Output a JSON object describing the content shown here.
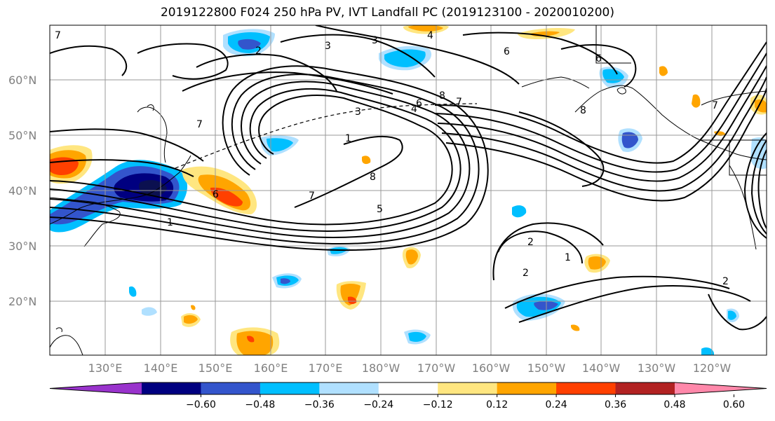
{
  "title": "2019122800 F024 250 hPa PV, IVT Landfall PC (2019123100 - 2020010200)",
  "latitude_labels": [
    "60°N",
    "50°N",
    "40°N",
    "30°N",
    "20°N"
  ],
  "longitude_labels": [
    "130°E",
    "140°E",
    "150°E",
    "160°E",
    "170°E",
    "180°W",
    "170°W",
    "160°W",
    "150°W",
    "140°W",
    "130°W",
    "120°W"
  ],
  "contour_labels": [
    "3",
    "3",
    "2",
    "4",
    "6",
    "6",
    "8",
    "7",
    "3",
    "6",
    "4",
    "8",
    "7",
    "1",
    "8",
    "7",
    "6",
    "5",
    "1",
    "7",
    "2",
    "1",
    "2",
    "2",
    "7"
  ],
  "colorbar": {
    "ticks": [
      "−0.60",
      "−0.48",
      "−0.36",
      "−0.24",
      "−0.12",
      "0.12",
      "0.24",
      "0.36",
      "0.48",
      "0.60"
    ],
    "colors": [
      "#9933cc",
      "#000080",
      "#3355cc",
      "#00bfff",
      "#b0e0ff",
      "#ffffff",
      "#ffe680",
      "#ffa500",
      "#ff4000",
      "#b22222",
      "#ff88aa"
    ]
  }
}
